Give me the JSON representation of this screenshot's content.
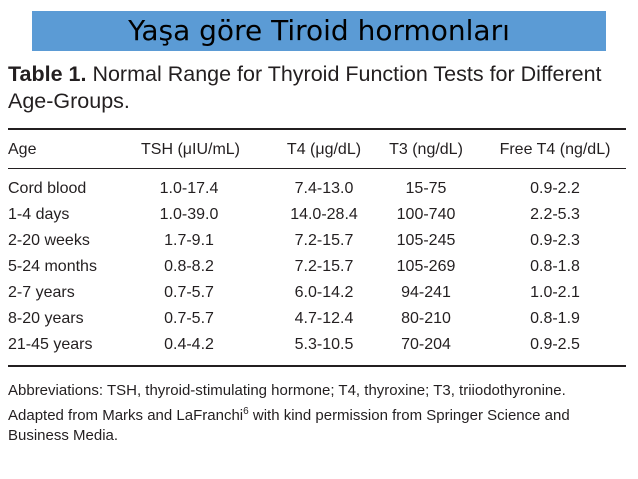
{
  "banner": "Yaşa göre Tiroid hormonları",
  "caption": {
    "label": "Table 1.",
    "title": "Normal Range for Thyroid Function Tests for Different Age-Groups."
  },
  "table": {
    "columns": [
      "Age",
      "TSH (μIU/mL)",
      "T4 (μg/dL)",
      "T3 (ng/dL)",
      "Free T4 (ng/dL)"
    ],
    "rows": [
      [
        "Cord blood",
        "1.0-17.4",
        "7.4-13.0",
        "15-75",
        "0.9-2.2"
      ],
      [
        "1-4 days",
        "1.0-39.0",
        "14.0-28.4",
        "100-740",
        "2.2-5.3"
      ],
      [
        "2-20 weeks",
        "1.7-9.1",
        "7.2-15.7",
        "105-245",
        "0.9-2.3"
      ],
      [
        "5-24 months",
        "0.8-8.2",
        "7.2-15.7",
        "105-269",
        "0.8-1.8"
      ],
      [
        "2-7 years",
        "0.7-5.7",
        "6.0-14.2",
        "94-241",
        "1.0-2.1"
      ],
      [
        "8-20 years",
        "0.7-5.7",
        "4.7-12.4",
        "80-210",
        "0.8-1.9"
      ],
      [
        "21-45 years",
        "0.4-4.2",
        "5.3-10.5",
        "70-204",
        "0.9-2.5"
      ]
    ]
  },
  "notes": {
    "abbreviations": "Abbreviations: TSH, thyroid-stimulating hormone; T4, thyroxine; T3, triiodothyronine.",
    "adapted_before": "Adapted from Marks and LaFranchi",
    "adapted_ref": "6",
    "adapted_after": " with kind permission from Springer Science and Business Media."
  }
}
